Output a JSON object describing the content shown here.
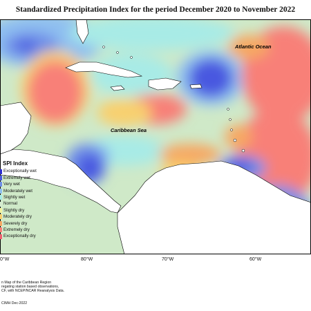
{
  "title": "Standardized Precipitation Index for the period December 2020 to November 2022",
  "labels": {
    "atlantic": "Atlantic Ocean",
    "caribbean": "Caribbean Sea"
  },
  "legend": {
    "title": "SPI Index",
    "items": [
      {
        "label": "Exceptionally wet",
        "color": "#2c2cd0"
      },
      {
        "label": "Extremely wet",
        "color": "#4a58e0"
      },
      {
        "label": "Very wet",
        "color": "#6f8fe8"
      },
      {
        "label": "Moderately wet",
        "color": "#8fbff0"
      },
      {
        "label": "Slightly wet",
        "color": "#a8ebe6"
      },
      {
        "label": "Normal",
        "color": "#d6ecd0"
      },
      {
        "label": "Slightly dry",
        "color": "#f2f2a0"
      },
      {
        "label": "Moderately dry",
        "color": "#f8d070"
      },
      {
        "label": "Severely dry",
        "color": "#f6a864"
      },
      {
        "label": "Extremely dry",
        "color": "#f88078"
      },
      {
        "label": "Exceptionally dry",
        "color": "#f06070"
      }
    ]
  },
  "axis": {
    "ticks": [
      {
        "label": "80°W"
      },
      {
        "label": "70°W"
      },
      {
        "label": "60°W"
      },
      {
        "label": "0°W"
      }
    ]
  },
  "footnote": {
    "lines": [
      "n Map of the Caribbean Region",
      "regating station based observations,",
      "CF, with NCEP/NCAR Reanalysis Data."
    ],
    "credit": "CIMH Dec-2022"
  }
}
